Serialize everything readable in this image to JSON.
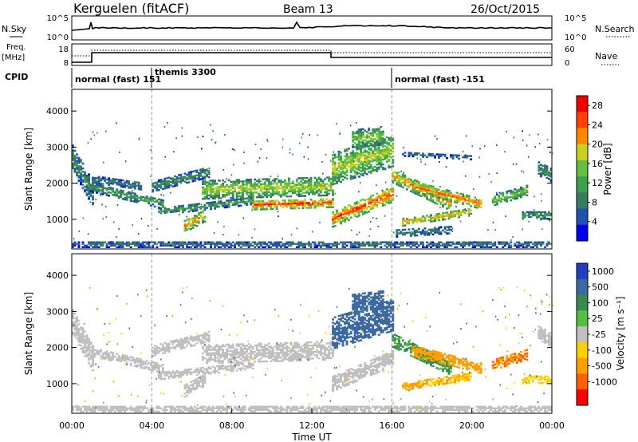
{
  "header": {
    "station": "Kerguelen (fitACF)",
    "beam": "Beam 13",
    "date": "26/Oct/2015"
  },
  "sky_panel": {
    "left_label": "N.Sky",
    "left_ticks": [
      "10^5",
      "10^0"
    ],
    "right_label": "N.Search",
    "right_ticks": [
      "10^5",
      "10^0"
    ]
  },
  "freq_panel": {
    "left_label_line1": "Freq.",
    "left_label_line2": "[MHz]",
    "left_ticks": [
      "18",
      "8"
    ],
    "right_label": "Nave",
    "right_ticks": [
      "60",
      "0"
    ]
  },
  "cpid": {
    "label": "CPID",
    "segments": [
      {
        "start_hour": 0,
        "label": "normal (fast) 151"
      },
      {
        "start_hour": 4,
        "label": "themis 3300"
      },
      {
        "start_hour": 16,
        "label": "normal (fast) -151"
      }
    ]
  },
  "colors": {
    "power_scale": [
      "#0000ee",
      "#2050b0",
      "#3a7a60",
      "#3ca050",
      "#66c040",
      "#c8d020",
      "#ff8800",
      "#ff4000",
      "#ee0000"
    ],
    "velocity_scale": [
      "#2040c0",
      "#3c6aa0",
      "#3a8a50",
      "#55c040",
      "#c0c0c0",
      "#ffd000",
      "#ffa000",
      "#ff6000",
      "#ff0000"
    ]
  },
  "chart_data": [
    {
      "type": "heatmap",
      "name": "power",
      "ylabel": "Slant Range [km]",
      "yticks": [
        1000,
        2000,
        3000,
        4000
      ],
      "ylim": [
        180,
        4600
      ],
      "xlim": [
        0,
        24
      ],
      "colorbar": {
        "label": "Power [dB]",
        "ticks": [
          "4",
          "8",
          "12",
          "16",
          "20",
          "24",
          "28"
        ],
        "range": [
          0,
          30
        ]
      },
      "bands": [
        {
          "x0": 0.0,
          "x1": 1.0,
          "r_start": 2700,
          "r_end": 1700,
          "width": 700,
          "value": 10
        },
        {
          "x0": 0.8,
          "x1": 4.6,
          "r_start": 1900,
          "r_end": 1400,
          "width": 260,
          "value": 12
        },
        {
          "x0": 1.0,
          "x1": 3.5,
          "r_start": 2100,
          "r_end": 1900,
          "width": 200,
          "value": 9
        },
        {
          "x0": 4.0,
          "x1": 6.8,
          "r_start": 1900,
          "r_end": 2300,
          "width": 300,
          "value": 10
        },
        {
          "x0": 6.5,
          "x1": 13.0,
          "r_start": 1800,
          "r_end": 1900,
          "width": 500,
          "value": 18
        },
        {
          "x0": 9.0,
          "x1": 13.0,
          "r_start": 1380,
          "r_end": 1450,
          "width": 260,
          "value": 26
        },
        {
          "x0": 5.6,
          "x1": 6.6,
          "r_start": 800,
          "r_end": 1100,
          "width": 360,
          "value": 22
        },
        {
          "x0": 4.3,
          "x1": 9.0,
          "r_start": 1200,
          "r_end": 1500,
          "width": 200,
          "value": 12
        },
        {
          "x0": 13.0,
          "x1": 16.0,
          "r_start": 1000,
          "r_end": 1700,
          "width": 450,
          "value": 25
        },
        {
          "x0": 13.0,
          "x1": 16.0,
          "r_start": 2400,
          "r_end": 2900,
          "width": 900,
          "value": 18
        },
        {
          "x0": 14.0,
          "x1": 15.5,
          "r_start": 3200,
          "r_end": 3300,
          "width": 500,
          "value": 16
        },
        {
          "x0": 16.0,
          "x1": 19.0,
          "r_start": 2200,
          "r_end": 1400,
          "width": 400,
          "value": 22
        },
        {
          "x0": 17.0,
          "x1": 20.5,
          "r_start": 1900,
          "r_end": 1400,
          "width": 280,
          "value": 24
        },
        {
          "x0": 16.5,
          "x1": 20.0,
          "r_start": 900,
          "r_end": 1200,
          "width": 200,
          "value": 22
        },
        {
          "x0": 16.2,
          "x1": 19.0,
          "r_start": 600,
          "r_end": 700,
          "width": 200,
          "value": 9
        },
        {
          "x0": 16.5,
          "x1": 20.0,
          "r_start": 2800,
          "r_end": 2700,
          "width": 120,
          "value": 8
        },
        {
          "x0": 21.0,
          "x1": 22.8,
          "r_start": 1500,
          "r_end": 1800,
          "width": 280,
          "value": 16
        },
        {
          "x0": 22.5,
          "x1": 24.0,
          "r_start": 1100,
          "r_end": 1100,
          "width": 200,
          "value": 12
        },
        {
          "x0": 23.3,
          "x1": 24.0,
          "r_start": 2400,
          "r_end": 2200,
          "width": 400,
          "value": 10
        },
        {
          "x0": 0.0,
          "x1": 24.0,
          "r_start": 300,
          "r_end": 300,
          "width": 180,
          "value": 8
        }
      ]
    },
    {
      "type": "heatmap",
      "name": "velocity",
      "ylabel": "Slant Range [km]",
      "xlabel": "Time UT",
      "yticks": [
        1000,
        2000,
        3000,
        4000
      ],
      "ylim": [
        180,
        4600
      ],
      "xlim": [
        0,
        24
      ],
      "xticks": [
        "00:00",
        "04:00",
        "08:00",
        "12:00",
        "16:00",
        "20:00",
        "00:00"
      ],
      "colorbar": {
        "label": "Velocity [m s⁻¹]",
        "ticks": [
          "1000",
          "500",
          "100",
          "25",
          "-25",
          "-100",
          "-500",
          "-1000"
        ],
        "range": [
          -1000,
          1000
        ]
      },
      "bands": [
        {
          "x0": 0.0,
          "x1": 1.0,
          "r_start": 2700,
          "r_end": 1700,
          "width": 700,
          "value": 0
        },
        {
          "x0": 0.8,
          "x1": 4.6,
          "r_start": 1900,
          "r_end": 1400,
          "width": 260,
          "value": 0
        },
        {
          "x0": 4.0,
          "x1": 6.8,
          "r_start": 1900,
          "r_end": 2300,
          "width": 300,
          "value": 0
        },
        {
          "x0": 6.5,
          "x1": 13.0,
          "r_start": 1800,
          "r_end": 1900,
          "width": 500,
          "value": 0
        },
        {
          "x0": 5.6,
          "x1": 6.6,
          "r_start": 800,
          "r_end": 1100,
          "width": 360,
          "value": 0
        },
        {
          "x0": 4.3,
          "x1": 9.0,
          "r_start": 1200,
          "r_end": 1500,
          "width": 200,
          "value": 0
        },
        {
          "x0": 13.0,
          "x1": 16.0,
          "r_start": 1000,
          "r_end": 1700,
          "width": 450,
          "value": 0
        },
        {
          "x0": 13.0,
          "x1": 16.0,
          "r_start": 2400,
          "r_end": 2900,
          "width": 900,
          "value": 150
        },
        {
          "x0": 14.0,
          "x1": 15.5,
          "r_start": 3200,
          "r_end": 3300,
          "width": 500,
          "value": 150
        },
        {
          "x0": 16.0,
          "x1": 19.0,
          "r_start": 2200,
          "r_end": 1400,
          "width": 400,
          "value": 60
        },
        {
          "x0": 17.0,
          "x1": 20.5,
          "r_start": 1900,
          "r_end": 1400,
          "width": 280,
          "value": -150
        },
        {
          "x0": 16.5,
          "x1": 20.0,
          "r_start": 900,
          "r_end": 1200,
          "width": 200,
          "value": -100
        },
        {
          "x0": 21.0,
          "x1": 22.8,
          "r_start": 1500,
          "r_end": 1800,
          "width": 280,
          "value": -300
        },
        {
          "x0": 22.5,
          "x1": 24.0,
          "r_start": 1100,
          "r_end": 1100,
          "width": 200,
          "value": -60
        },
        {
          "x0": 23.3,
          "x1": 24.0,
          "r_start": 2400,
          "r_end": 2200,
          "width": 400,
          "value": 0
        },
        {
          "x0": 0.0,
          "x1": 24.0,
          "r_start": 300,
          "r_end": 300,
          "width": 180,
          "value": 0
        }
      ]
    }
  ]
}
